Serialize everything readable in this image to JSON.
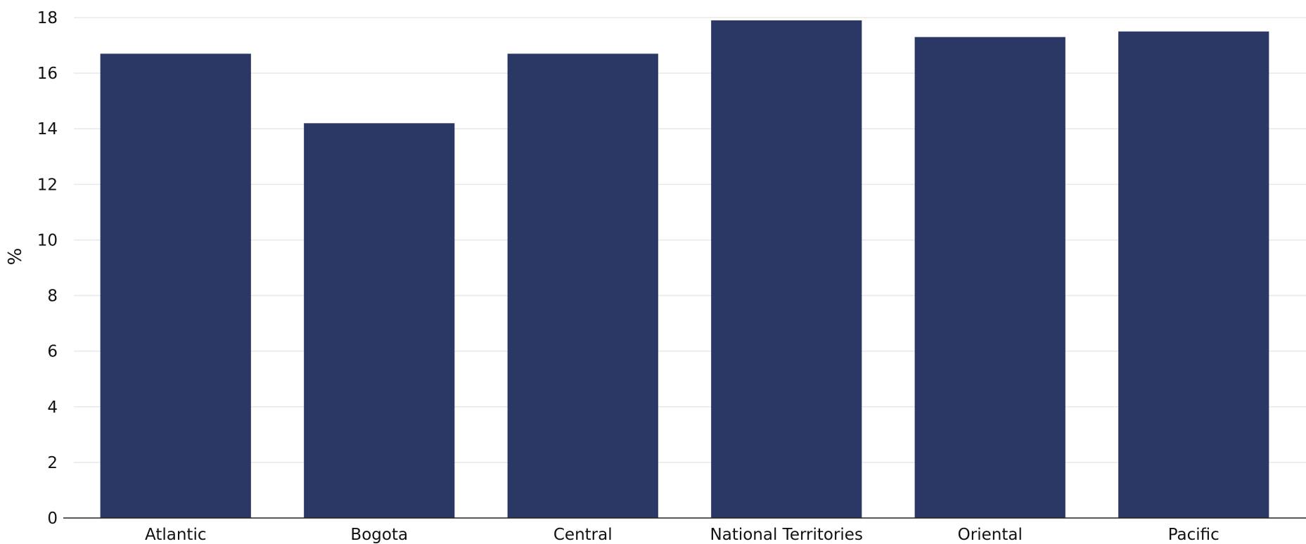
{
  "chart_data": {
    "type": "bar",
    "categories": [
      "Atlantic",
      "Bogota",
      "Central",
      "National Territories",
      "Oriental",
      "Pacific"
    ],
    "values": [
      16.7,
      14.2,
      16.7,
      17.9,
      17.3,
      17.5
    ],
    "title": "",
    "xlabel": "",
    "ylabel": "%",
    "ylim": [
      0,
      18
    ],
    "yticks": [
      0,
      2,
      4,
      6,
      8,
      10,
      12,
      14,
      16,
      18
    ],
    "grid": true,
    "bar_color": "#2b3764",
    "grid_color": "#e8e8e8"
  }
}
